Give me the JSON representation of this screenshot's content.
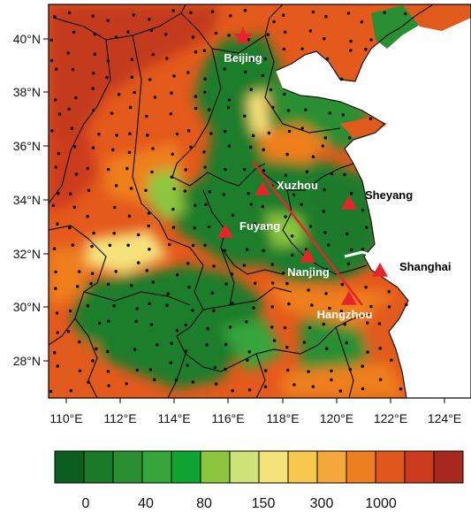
{
  "lat_labels": [
    "40°N",
    "38°N",
    "36°N",
    "34°N",
    "32°N",
    "30°N",
    "28°N"
  ],
  "lon_labels": [
    "110°E",
    "112°E",
    "114°E",
    "116°E",
    "118°E",
    "120°E",
    "122°E",
    "124°E"
  ],
  "cities": [
    {
      "name": "Beijing",
      "marker": "star",
      "label_color": "#ffffff"
    },
    {
      "name": "Xuzhou",
      "marker": "triangle",
      "label_color": "#ffffff"
    },
    {
      "name": "Sheyang",
      "marker": "triangle",
      "label_color": "#000000"
    },
    {
      "name": "Fuyang",
      "marker": "triangle",
      "label_color": "#ffffff"
    },
    {
      "name": "Nanjing",
      "marker": "triangle",
      "label_color": "#ffffff"
    },
    {
      "name": "Shanghai",
      "marker": "triangle",
      "label_color": "#000000"
    },
    {
      "name": "Hangzhou",
      "marker": "triangle",
      "label_color": "#ffffff"
    }
  ],
  "colorbar": {
    "colors": [
      "#0b5e1e",
      "#1b7a2a",
      "#2a8f33",
      "#35a63a",
      "#0fa32f",
      "#8cc63f",
      "#cfe27a",
      "#f6e27a",
      "#f7c74d",
      "#f4a73a",
      "#ee7f1e",
      "#e0561b",
      "#cc3b1e",
      "#a8281f"
    ],
    "labels": [
      "0",
      "40",
      "80",
      "150",
      "300",
      "1000"
    ]
  },
  "colors": {
    "marker": "#e8232b",
    "transect_line": "#e8232b",
    "sea": "#ffffff"
  }
}
